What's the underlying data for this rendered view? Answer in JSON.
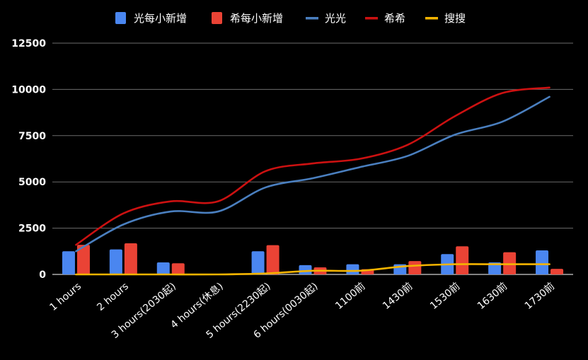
{
  "chart_data": {
    "type": "bar",
    "categories": [
      "1 hours",
      "2 hours",
      "3 hours(2030起)",
      "4 hours(休息)",
      "5 hours(2230起)",
      "6 hours(0030起)",
      "1100前",
      "1430前",
      "1530前",
      "1630前",
      "1730前"
    ],
    "series": [
      {
        "name": "光每小新增",
        "kind": "bar",
        "color": "#4a86f0",
        "values": [
          1250,
          1350,
          650,
          0,
          1250,
          500,
          550,
          550,
          1100,
          650,
          1300
        ]
      },
      {
        "name": "希每小新增",
        "kind": "bar",
        "color": "#ea4335",
        "values": [
          1600,
          1680,
          600,
          0,
          1580,
          380,
          280,
          720,
          1520,
          1200,
          300
        ]
      },
      {
        "name": "光光",
        "kind": "line",
        "color": "#4a7fbf",
        "values": [
          1250,
          2700,
          3400,
          3400,
          4700,
          5200,
          5800,
          6400,
          7550,
          8250,
          9600
        ]
      },
      {
        "name": "希希",
        "kind": "line",
        "color": "#cc1111",
        "values": [
          1600,
          3300,
          3950,
          3950,
          5580,
          6000,
          6250,
          7000,
          8550,
          9800,
          10100
        ]
      },
      {
        "name": "搜搜",
        "kind": "line",
        "color": "#f4b400",
        "values": [
          0,
          0,
          0,
          0,
          50,
          200,
          200,
          450,
          550,
          550,
          550
        ]
      }
    ],
    "y_ticks": [
      "0",
      "2500",
      "5000",
      "7500",
      "10000",
      "12500"
    ],
    "ylim": [
      0,
      12500
    ],
    "grid": true,
    "legend_position": "top"
  }
}
